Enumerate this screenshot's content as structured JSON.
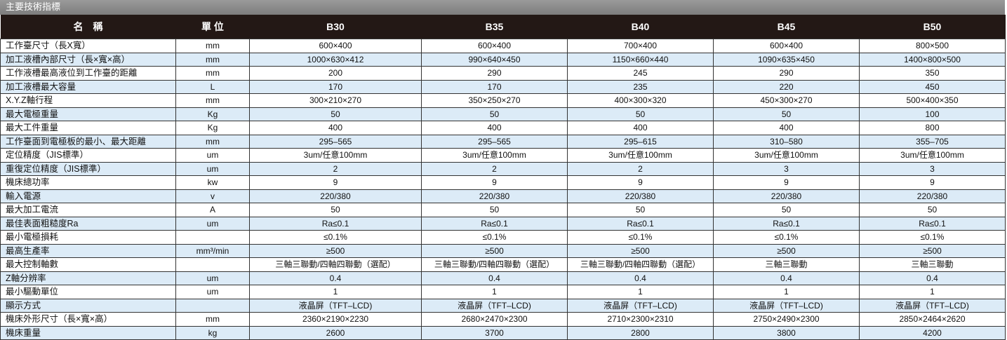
{
  "title": "主要技術指標",
  "header": {
    "name": "名　稱",
    "unit": "單 位",
    "models": [
      "B30",
      "B35",
      "B40",
      "B45",
      "B50"
    ]
  },
  "rows": [
    {
      "name": "工作臺尺寸（長X寬）",
      "unit": "mm",
      "values": [
        "600×400",
        "600×400",
        "700×400",
        "600×400",
        "800×500"
      ]
    },
    {
      "name": "加工液槽內部尺寸（長×寬×高）",
      "unit": "mm",
      "values": [
        "1000×630×412",
        "990×640×450",
        "1150×660×440",
        "1090×635×450",
        "1400×800×500"
      ]
    },
    {
      "name": "工作液槽最高液位到工作臺的距離",
      "unit": "mm",
      "values": [
        "200",
        "290",
        "245",
        "290",
        "350"
      ]
    },
    {
      "name": "加工液槽最大容量",
      "unit": "L",
      "values": [
        "170",
        "170",
        "235",
        "220",
        "450"
      ]
    },
    {
      "name": "X.Y.Z軸行程",
      "unit": "mm",
      "values": [
        "300×210×270",
        "350×250×270",
        "400×300×320",
        "450×300×270",
        "500×400×350"
      ]
    },
    {
      "name": "最大電極重量",
      "unit": "Kg",
      "values": [
        "50",
        "50",
        "50",
        "50",
        "100"
      ]
    },
    {
      "name": "最大工件重量",
      "unit": "Kg",
      "values": [
        "400",
        "400",
        "400",
        "400",
        "800"
      ]
    },
    {
      "name": "工作臺面到電極板的最小、最大距離",
      "unit": "mm",
      "values": [
        "295–565",
        "295–565",
        "295–615",
        "310–580",
        "355–705"
      ]
    },
    {
      "name": "定位精度（JIS標準）",
      "unit": "um",
      "values": [
        "3um/任意100mm",
        "3um/任意100mm",
        "3um/任意100mm",
        "3um/任意100mm",
        "3um/任意100mm"
      ]
    },
    {
      "name": "重復定位精度（JIS標準）",
      "unit": "um",
      "values": [
        "2",
        "2",
        "2",
        "3",
        "3"
      ]
    },
    {
      "name": "機床總功率",
      "unit": "kw",
      "values": [
        "9",
        "9",
        "9",
        "9",
        "9"
      ]
    },
    {
      "name": "輸入電源",
      "unit": "v",
      "values": [
        "220/380",
        "220/380",
        "220/380",
        "220/380",
        "220/380"
      ]
    },
    {
      "name": "最大加工電流",
      "unit": "A",
      "values": [
        "50",
        "50",
        "50",
        "50",
        "50"
      ]
    },
    {
      "name": "最佳表面粗糙度Ra",
      "unit": "um",
      "values": [
        "Ra≤0.1",
        "Ra≤0.1",
        "Ra≤0.1",
        "Ra≤0.1",
        "Ra≤0.1"
      ]
    },
    {
      "name": "最小電極損耗",
      "unit": "",
      "values": [
        "≤0.1%",
        "≤0.1%",
        "≤0.1%",
        "≤0.1%",
        "≤0.1%"
      ]
    },
    {
      "name": "最高生產率",
      "unit": "mm³/min",
      "values": [
        "≥500",
        "≥500",
        "≥500",
        "≥500",
        "≥500"
      ]
    },
    {
      "name": "最大控制軸數",
      "unit": "",
      "values": [
        "三軸三聯動/四軸四聯動（選配）",
        "三軸三聯動/四軸四聯動（選配）",
        "三軸三聯動/四軸四聯動（選配）",
        "三軸三聯動",
        "三軸三聯動"
      ]
    },
    {
      "name": "Z軸分辨率",
      "unit": "um",
      "values": [
        "0.4",
        "0.4",
        "0.4",
        "0.4",
        "0.4"
      ]
    },
    {
      "name": "最小驅動單位",
      "unit": "um",
      "values": [
        "1",
        "1",
        "1",
        "1",
        "1"
      ]
    },
    {
      "name": "顯示方式",
      "unit": "",
      "values": [
        "液晶屏（TFT–LCD)",
        "液晶屏（TFT–LCD)",
        "液晶屏（TFT–LCD)",
        "液晶屏（TFT–LCD)",
        "液晶屏（TFT–LCD)"
      ]
    },
    {
      "name": "機床外形尺寸（長×寬×高）",
      "unit": "mm",
      "values": [
        "2360×2190×2230",
        "2680×2470×2300",
        "2710×2300×2310",
        "2750×2490×2300",
        "2850×2464×2620"
      ]
    },
    {
      "name": "機床重量",
      "unit": "kg",
      "values": [
        "2600",
        "3700",
        "2800",
        "3800",
        "4200"
      ]
    }
  ],
  "colors": {
    "header_bg": "#231815",
    "title_bg": "#8a8a8a",
    "alt_row": "#dcebf7"
  }
}
